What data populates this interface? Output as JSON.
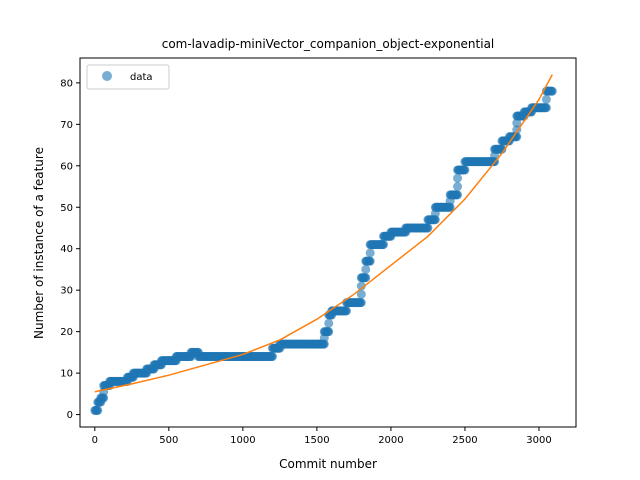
{
  "chart_data": {
    "type": "scatter",
    "title": "com-lavadip-miniVector_companion_object-exponential",
    "xlabel": "Commit number",
    "ylabel": "Number of instance of a feature",
    "xlim": [
      -100,
      3250
    ],
    "ylim": [
      -3,
      86
    ],
    "xticks": [
      0,
      500,
      1000,
      1500,
      2000,
      2500,
      3000
    ],
    "yticks": [
      0,
      10,
      20,
      30,
      40,
      50,
      60,
      70,
      80
    ],
    "grid": false,
    "legend": {
      "placement": "top-left",
      "entries": [
        "data"
      ]
    },
    "colors": {
      "data": "#1f77b4",
      "fit": "#ff7f0e"
    },
    "series": [
      {
        "name": "data",
        "kind": "steps",
        "steps": [
          [
            0,
            20,
            1
          ],
          [
            20,
            40,
            3
          ],
          [
            40,
            60,
            4
          ],
          [
            60,
            100,
            7
          ],
          [
            100,
            220,
            8
          ],
          [
            220,
            260,
            9
          ],
          [
            260,
            350,
            10
          ],
          [
            350,
            400,
            11
          ],
          [
            400,
            450,
            12
          ],
          [
            450,
            500,
            13
          ],
          [
            500,
            550,
            13
          ],
          [
            550,
            650,
            14
          ],
          [
            650,
            700,
            15
          ],
          [
            700,
            1000,
            14
          ],
          [
            1000,
            1200,
            14
          ],
          [
            1200,
            1250,
            16
          ],
          [
            1250,
            1550,
            17
          ],
          [
            1550,
            1580,
            20
          ],
          [
            1580,
            1600,
            24
          ],
          [
            1600,
            1700,
            25
          ],
          [
            1700,
            1800,
            27
          ],
          [
            1800,
            1830,
            33
          ],
          [
            1830,
            1860,
            37
          ],
          [
            1860,
            1950,
            41
          ],
          [
            1950,
            2000,
            43
          ],
          [
            2000,
            2100,
            44
          ],
          [
            2100,
            2250,
            45
          ],
          [
            2250,
            2300,
            47
          ],
          [
            2300,
            2400,
            50
          ],
          [
            2400,
            2450,
            53
          ],
          [
            2450,
            2500,
            59
          ],
          [
            2500,
            2700,
            61
          ],
          [
            2700,
            2750,
            64
          ],
          [
            2750,
            2800,
            66
          ],
          [
            2800,
            2850,
            67
          ],
          [
            2850,
            2900,
            72
          ],
          [
            2900,
            2950,
            73
          ],
          [
            2950,
            3050,
            74
          ],
          [
            3050,
            3090,
            78
          ]
        ]
      },
      {
        "name": "",
        "kind": "line",
        "x": [
          0,
          250,
          500,
          750,
          1000,
          1250,
          1500,
          1750,
          2000,
          2250,
          2500,
          2750,
          3000,
          3090
        ],
        "values": [
          5.5,
          7.4,
          9.5,
          12.0,
          14.5,
          18.0,
          23.0,
          29.0,
          36.0,
          43.0,
          52.0,
          63.0,
          76.0,
          82.0
        ]
      }
    ]
  }
}
